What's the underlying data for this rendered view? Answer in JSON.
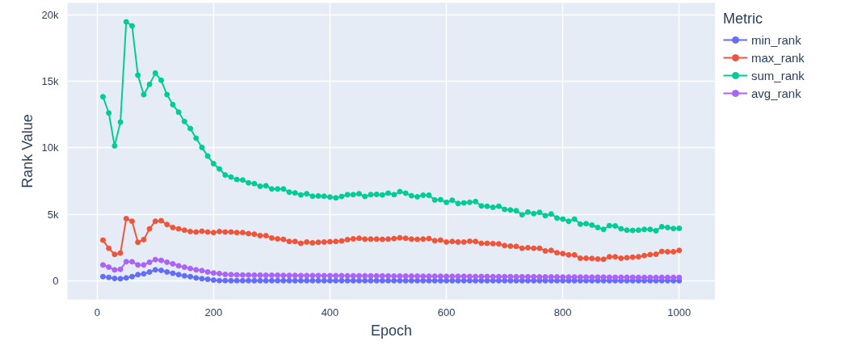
{
  "chart_data": {
    "type": "line",
    "xlabel": "Epoch",
    "ylabel": "Rank Value",
    "legend_title": "Metric",
    "x": [
      10,
      20,
      30,
      40,
      50,
      60,
      70,
      80,
      90,
      100,
      110,
      120,
      130,
      140,
      150,
      160,
      170,
      180,
      190,
      200,
      210,
      220,
      230,
      240,
      250,
      260,
      270,
      280,
      290,
      300,
      310,
      320,
      330,
      340,
      350,
      360,
      370,
      380,
      390,
      400,
      410,
      420,
      430,
      440,
      450,
      460,
      470,
      480,
      490,
      500,
      510,
      520,
      530,
      540,
      550,
      560,
      570,
      580,
      590,
      600,
      610,
      620,
      630,
      640,
      650,
      660,
      670,
      680,
      690,
      700,
      710,
      720,
      730,
      740,
      750,
      760,
      770,
      780,
      790,
      800,
      810,
      820,
      830,
      840,
      850,
      860,
      870,
      880,
      890,
      900,
      910,
      920,
      930,
      940,
      950,
      960,
      970,
      980,
      990,
      1000
    ],
    "series": [
      {
        "name": "min_rank",
        "color": "#636efa",
        "values": [
          320,
          260,
          180,
          160,
          220,
          320,
          470,
          530,
          670,
          830,
          790,
          670,
          570,
          470,
          380,
          320,
          220,
          160,
          120,
          60,
          20,
          20,
          10,
          10,
          10,
          10,
          10,
          10,
          10,
          10,
          10,
          10,
          10,
          10,
          10,
          10,
          10,
          10,
          10,
          10,
          10,
          10,
          10,
          10,
          10,
          10,
          10,
          10,
          10,
          10,
          10,
          10,
          10,
          10,
          10,
          10,
          10,
          10,
          10,
          10,
          10,
          10,
          10,
          10,
          10,
          10,
          10,
          10,
          10,
          10,
          10,
          10,
          10,
          10,
          10,
          10,
          10,
          10,
          10,
          10,
          10,
          10,
          10,
          10,
          10,
          10,
          10,
          10,
          10,
          10,
          10,
          10,
          10,
          10,
          10,
          10,
          10,
          10,
          10,
          10
        ]
      },
      {
        "name": "max_rank",
        "color": "#ef553b",
        "values": [
          3060,
          2450,
          1990,
          2090,
          4680,
          4480,
          2900,
          3100,
          3910,
          4480,
          4520,
          4240,
          4010,
          3910,
          3810,
          3710,
          3670,
          3730,
          3670,
          3630,
          3710,
          3670,
          3670,
          3630,
          3630,
          3550,
          3510,
          3400,
          3400,
          3220,
          3160,
          3120,
          2960,
          2960,
          2820,
          2920,
          2860,
          2900,
          2920,
          2940,
          2960,
          3000,
          3100,
          3160,
          3200,
          3140,
          3140,
          3140,
          3120,
          3140,
          3180,
          3240,
          3200,
          3140,
          3120,
          3140,
          3180,
          3020,
          3060,
          2920,
          2960,
          2920,
          2920,
          2980,
          2960,
          2820,
          2820,
          2800,
          2780,
          2650,
          2610,
          2590,
          2450,
          2490,
          2450,
          2450,
          2250,
          2290,
          2110,
          2050,
          1950,
          1950,
          1700,
          1700,
          1680,
          1640,
          1620,
          1810,
          1810,
          1700,
          1740,
          1780,
          1810,
          1900,
          1970,
          2000,
          2210,
          2190,
          2190,
          2290
        ]
      },
      {
        "name": "sum_rank",
        "color": "#00cc96",
        "values": [
          13840,
          12620,
          10150,
          11930,
          19470,
          19170,
          15460,
          14000,
          14770,
          15620,
          15080,
          14000,
          13250,
          12680,
          11980,
          11450,
          10720,
          10030,
          9380,
          8810,
          8410,
          7960,
          7800,
          7620,
          7580,
          7370,
          7310,
          7110,
          7150,
          6910,
          6910,
          6910,
          6670,
          6610,
          6460,
          6550,
          6360,
          6380,
          6360,
          6300,
          6240,
          6340,
          6480,
          6480,
          6550,
          6340,
          6480,
          6500,
          6460,
          6590,
          6480,
          6710,
          6590,
          6400,
          6320,
          6440,
          6440,
          6080,
          6100,
          5900,
          6060,
          5820,
          5860,
          5900,
          5960,
          5630,
          5610,
          5530,
          5610,
          5370,
          5330,
          5270,
          4970,
          5170,
          5050,
          5150,
          4900,
          5030,
          4720,
          4640,
          4480,
          4640,
          4260,
          4300,
          4190,
          4010,
          3870,
          4150,
          4130,
          3910,
          3810,
          3790,
          3810,
          3870,
          3870,
          3770,
          4070,
          4010,
          3930,
          3950
        ]
      },
      {
        "name": "avg_rank",
        "color": "#ab63fa",
        "values": [
          1200,
          1030,
          830,
          870,
          1440,
          1440,
          1200,
          1200,
          1400,
          1600,
          1540,
          1400,
          1280,
          1130,
          1030,
          930,
          830,
          770,
          670,
          590,
          550,
          490,
          470,
          450,
          440,
          440,
          430,
          430,
          420,
          420,
          420,
          410,
          410,
          410,
          400,
          400,
          400,
          400,
          390,
          390,
          390,
          390,
          380,
          380,
          380,
          380,
          370,
          370,
          370,
          370,
          360,
          360,
          360,
          360,
          360,
          350,
          350,
          350,
          350,
          340,
          340,
          340,
          340,
          330,
          330,
          330,
          330,
          320,
          320,
          320,
          320,
          310,
          310,
          310,
          310,
          300,
          300,
          300,
          300,
          290,
          290,
          290,
          290,
          280,
          280,
          280,
          280,
          270,
          270,
          270,
          270,
          270,
          260,
          260,
          260,
          260,
          260,
          260,
          260,
          260
        ]
      }
    ],
    "xlim": [
      -51,
      1062
    ],
    "xticks": [
      0,
      200,
      400,
      600,
      800,
      1000
    ],
    "ylim": [
      -1400,
      20900
    ],
    "yticks": [
      0,
      {
        "value": 5000,
        "label": "5k"
      },
      {
        "value": 10000,
        "label": "10k"
      },
      {
        "value": 15000,
        "label": "15k"
      },
      {
        "value": 20000,
        "label": "20k"
      }
    ],
    "grid": true,
    "legend": "top right",
    "marker": "circle",
    "line_style": "solid"
  }
}
